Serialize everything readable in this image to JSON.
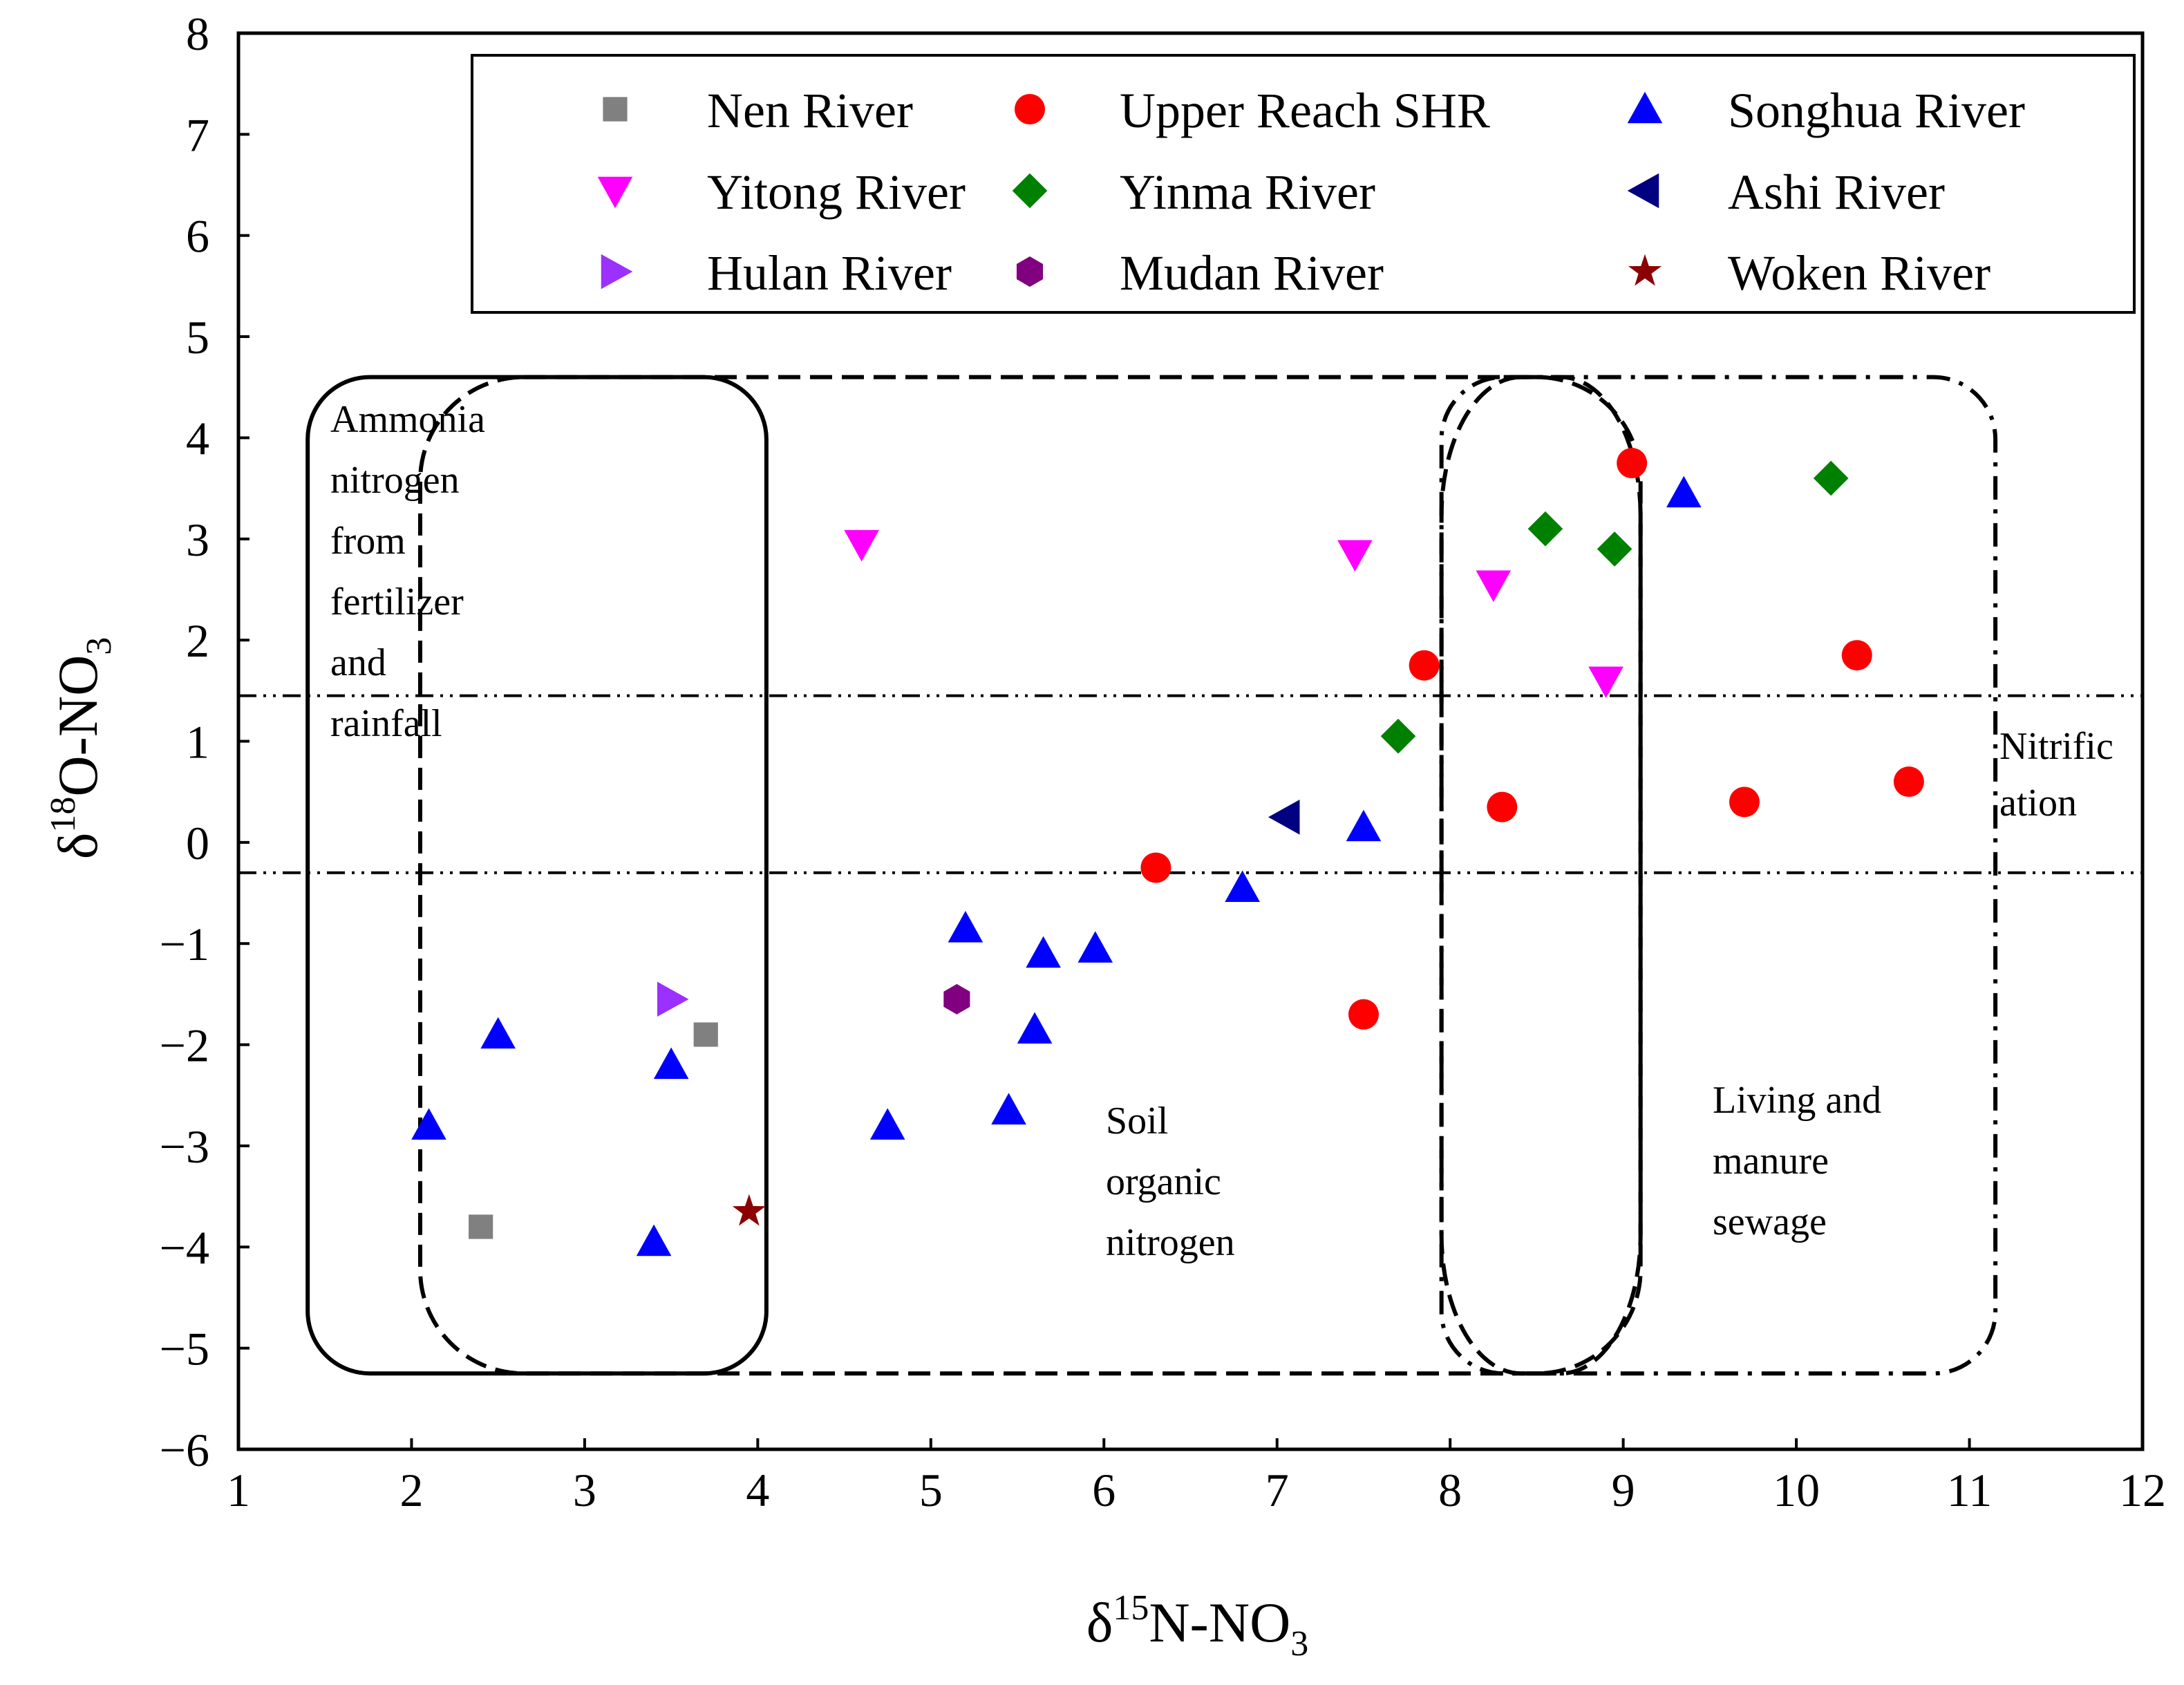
{
  "chart_data": {
    "type": "scatter",
    "title": "",
    "xlabel": {
      "base": "δ",
      "sup": "15",
      "main": "N-NO",
      "sub": "3"
    },
    "ylabel": {
      "base": "δ",
      "sup": "18",
      "main": "O-NO",
      "sub": "3"
    },
    "xlim": [
      1,
      12
    ],
    "ylim": [
      -6,
      8
    ],
    "xticks": [
      "1",
      "2",
      "3",
      "4",
      "5",
      "6",
      "7",
      "8",
      "9",
      "10",
      "11",
      "12"
    ],
    "yticks": [
      "8",
      "7",
      "6",
      "5",
      "4",
      "3",
      "2",
      "1",
      "0",
      "−1",
      "−2",
      "−3",
      "−4",
      "−5",
      "−6"
    ],
    "legend_position": "top-right",
    "series": [
      {
        "name": "Nen River",
        "marker": "square",
        "color": "#808080",
        "points": [
          [
            2.4,
            -3.8
          ],
          [
            3.7,
            -1.9
          ]
        ]
      },
      {
        "name": "Upper Reach SHR",
        "marker": "circle",
        "color": "#ff0000",
        "points": [
          [
            6.3,
            -0.25
          ],
          [
            7.5,
            -1.7
          ],
          [
            7.85,
            1.75
          ],
          [
            8.3,
            0.35
          ],
          [
            9.05,
            3.75
          ],
          [
            9.7,
            0.4
          ],
          [
            10.35,
            1.85
          ],
          [
            10.65,
            0.6
          ]
        ]
      },
      {
        "name": "Songhua River",
        "marker": "triangle-up",
        "color": "#0000ff",
        "points": [
          [
            2.1,
            -2.8
          ],
          [
            2.5,
            -1.9
          ],
          [
            3.4,
            -3.95
          ],
          [
            3.5,
            -2.2
          ],
          [
            4.75,
            -2.8
          ],
          [
            5.2,
            -0.85
          ],
          [
            5.45,
            -2.65
          ],
          [
            5.6,
            -1.85
          ],
          [
            5.65,
            -1.1
          ],
          [
            5.95,
            -1.05
          ],
          [
            6.8,
            -0.45
          ],
          [
            7.5,
            0.15
          ],
          [
            9.35,
            3.45
          ]
        ]
      },
      {
        "name": "Yitong River",
        "marker": "triangle-down",
        "color": "#ff00ff",
        "points": [
          [
            4.6,
            2.95
          ],
          [
            7.45,
            2.85
          ],
          [
            8.25,
            2.55
          ],
          [
            8.9,
            1.6
          ]
        ]
      },
      {
        "name": "Yinma River",
        "marker": "diamond",
        "color": "#008000",
        "points": [
          [
            7.7,
            1.05
          ],
          [
            8.55,
            3.1
          ],
          [
            8.95,
            2.9
          ],
          [
            10.2,
            3.6
          ]
        ]
      },
      {
        "name": "Ashi River",
        "marker": "triangle-left",
        "color": "#000080",
        "points": [
          [
            7.05,
            0.25
          ]
        ]
      },
      {
        "name": "Hulan River",
        "marker": "triangle-right",
        "color": "#9b30ff",
        "points": [
          [
            3.5,
            -1.55
          ]
        ]
      },
      {
        "name": "Mudan River",
        "marker": "hexagon",
        "color": "#800080",
        "points": [
          [
            5.15,
            -1.55
          ]
        ]
      },
      {
        "name": "Woken River",
        "marker": "star",
        "color": "#8b0000",
        "points": [
          [
            3.95,
            -3.65
          ]
        ]
      }
    ],
    "reference_lines": [
      1.45,
      -0.3
    ],
    "regions": [
      {
        "name": "ammonia",
        "style": "solid",
        "x": [
          1.4,
          4.05
        ],
        "y": [
          -5.25,
          4.6
        ]
      },
      {
        "name": "soil",
        "style": "dashed",
        "x": [
          2.05,
          9.1
        ],
        "y": [
          -5.25,
          4.6
        ]
      },
      {
        "name": "nitrification-box",
        "style": "dashdot",
        "x": [
          7.95,
          11.15
        ],
        "y": [
          -5.25,
          4.6
        ]
      }
    ],
    "annotations": {
      "ammonia": [
        "Ammonia",
        "nitrogen",
        "from",
        "fertilizer",
        "and",
        "rainfall"
      ],
      "soil": [
        "Soil",
        "organic",
        "nitrogen"
      ],
      "living": [
        "Living  and",
        "manure",
        "sewage"
      ],
      "nitrification": [
        "Nitrific",
        "ation"
      ]
    }
  }
}
